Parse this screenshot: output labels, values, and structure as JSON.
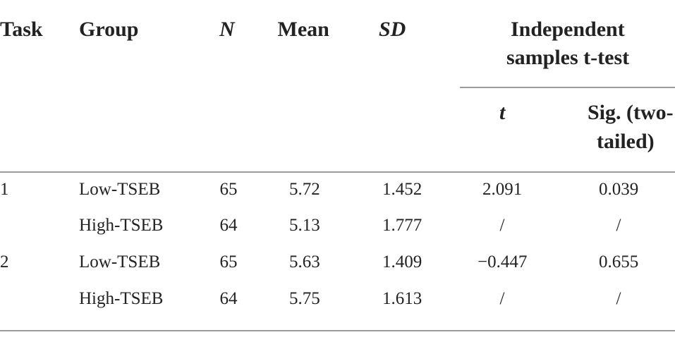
{
  "table": {
    "header": {
      "task": "Task",
      "group": "Group",
      "n": "N",
      "mean": "Mean",
      "sd": "SD",
      "test": [
        "Independent",
        "samples t-test"
      ],
      "t": "t",
      "sig": [
        "Sig. (two-",
        "tailed)"
      ]
    },
    "rows": [
      {
        "task": "1",
        "group": "Low-TSEB",
        "n": "65",
        "mean": "5.72",
        "sd": "1.452",
        "t": "2.091",
        "sig": "0.039"
      },
      {
        "group": "High-TSEB",
        "n": "64",
        "mean": "5.13",
        "sd": "1.777",
        "t": "/",
        "sig": "/"
      },
      {
        "task": "2",
        "group": "Low-TSEB",
        "n": "65",
        "mean": "5.63",
        "sd": "1.409",
        "t": "−0.447",
        "sig": "0.655"
      },
      {
        "group": "High-TSEB",
        "n": "64",
        "mean": "5.75",
        "sd": "1.613",
        "t": "/",
        "sig": "/"
      }
    ]
  }
}
